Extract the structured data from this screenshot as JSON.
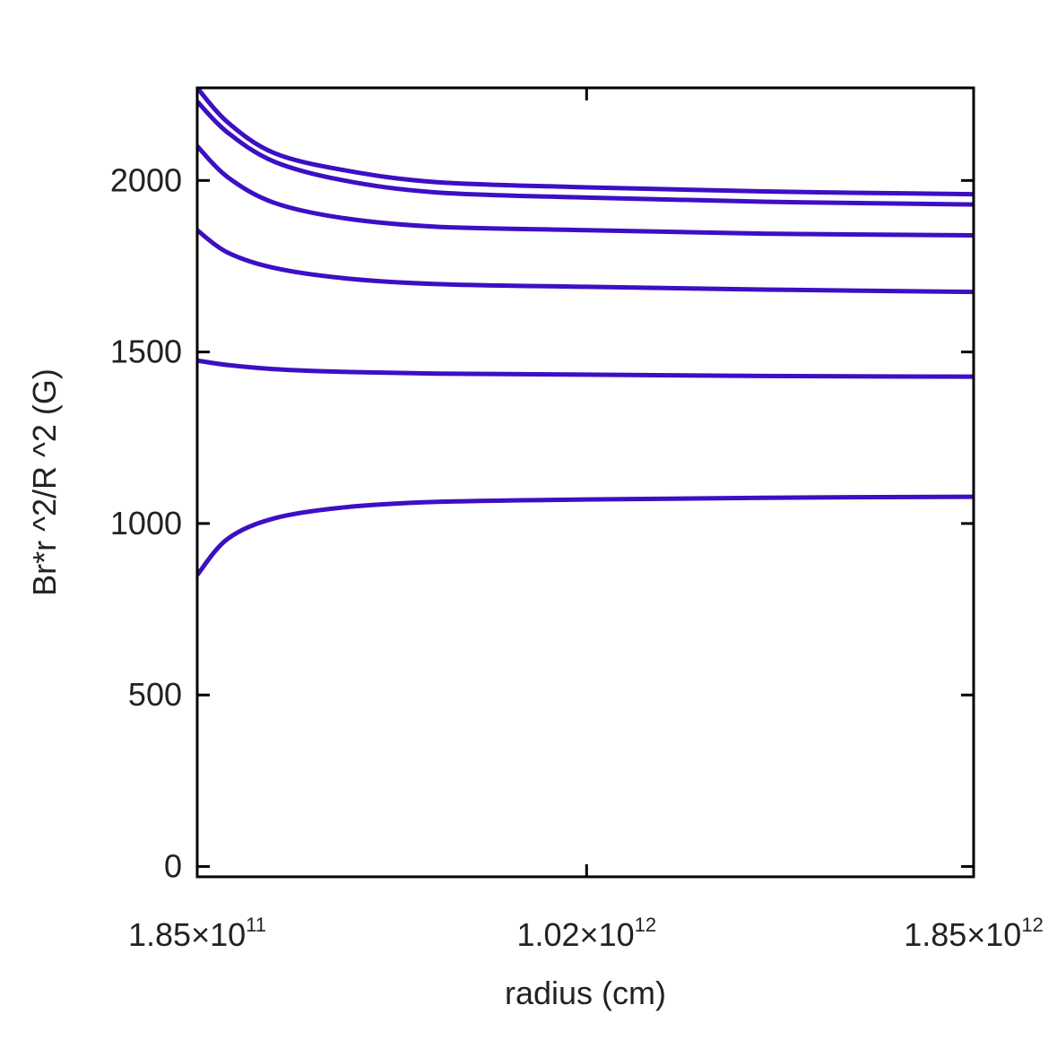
{
  "chart_data": {
    "type": "line",
    "title": "",
    "xlabel": "radius (cm)",
    "ylabel": "Br*r ^2/R ^2 (G)",
    "xlim": [
      185000000000.0,
      1850000000000.0
    ],
    "ylim": [
      -30,
      2270
    ],
    "grid": false,
    "legend": "none",
    "line_color": "#3d0fc4",
    "x_ticks": [
      {
        "value": 185000000000.0,
        "mantissa": "1.85",
        "times": "×",
        "base": "10",
        "exponent": "11"
      },
      {
        "value": 1020000000000.0,
        "mantissa": "1.02",
        "times": "×",
        "base": "10",
        "exponent": "12"
      },
      {
        "value": 1850000000000.0,
        "mantissa": "1.85",
        "times": "×",
        "base": "10",
        "exponent": "12"
      }
    ],
    "y_ticks": [
      {
        "value": 0,
        "label": "0"
      },
      {
        "value": 500,
        "label": "500"
      },
      {
        "value": 1000,
        "label": "1000"
      },
      {
        "value": 1500,
        "label": "1500"
      },
      {
        "value": 2000,
        "label": "2000"
      }
    ],
    "x": [
      185000000000.0,
      250000000000.0,
      350000000000.0,
      500000000000.0,
      700000000000.0,
      1020000000000.0,
      1400000000000.0,
      1850000000000.0
    ],
    "series": [
      {
        "values": [
          2270,
          2170,
          2080,
          2030,
          1995,
          1980,
          1968,
          1960
        ]
      },
      {
        "values": [
          2230,
          2140,
          2055,
          2000,
          1965,
          1950,
          1938,
          1930
        ]
      },
      {
        "values": [
          2100,
          2010,
          1935,
          1890,
          1865,
          1855,
          1845,
          1840
        ]
      },
      {
        "values": [
          1855,
          1790,
          1745,
          1715,
          1698,
          1690,
          1682,
          1675
        ]
      },
      {
        "values": [
          1475,
          1462,
          1450,
          1442,
          1437,
          1434,
          1430,
          1428
        ]
      },
      {
        "values": [
          850,
          955,
          1015,
          1047,
          1063,
          1070,
          1075,
          1078
        ]
      }
    ]
  }
}
